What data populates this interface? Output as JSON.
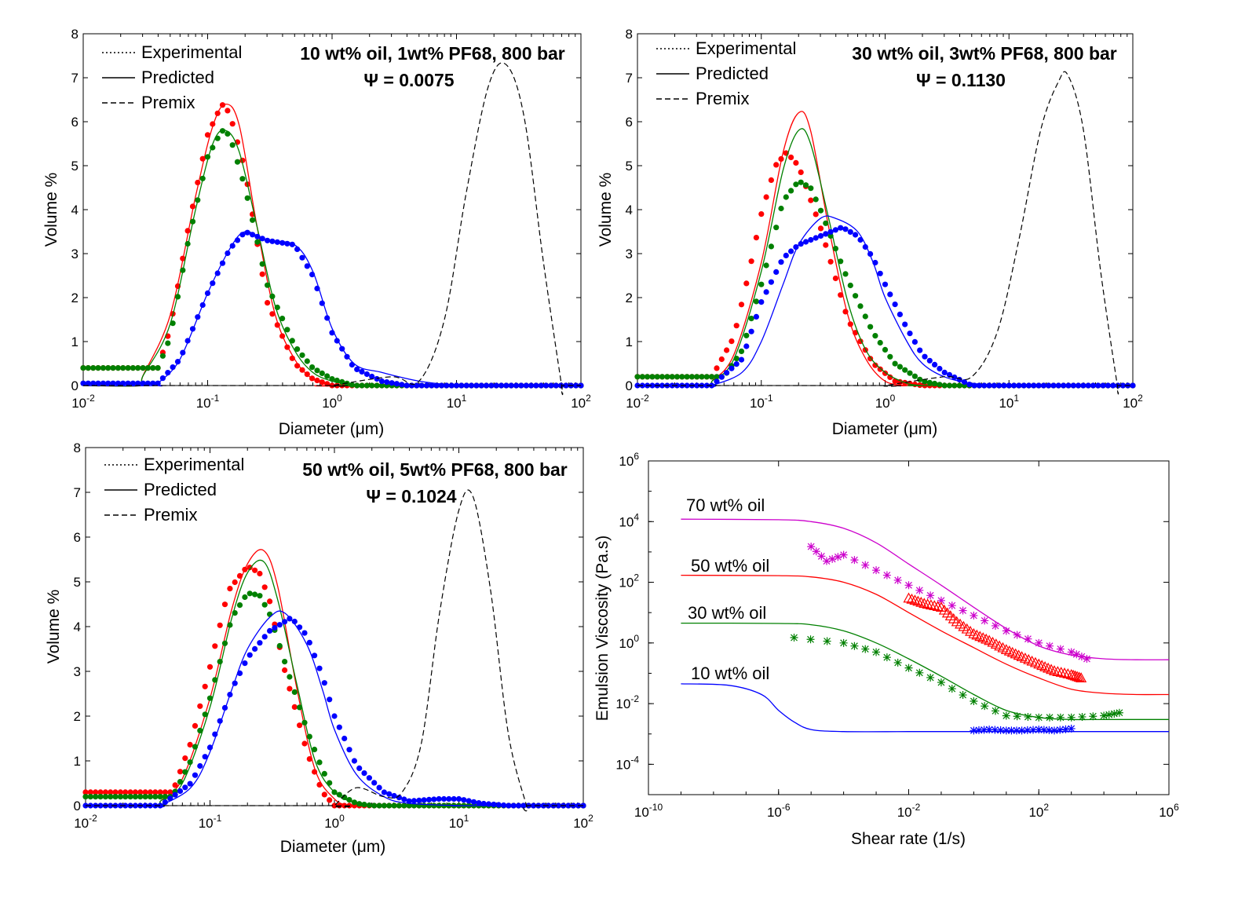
{
  "chart_data": [
    {
      "type": "line",
      "title": "10 wt% oil, 1wt% PF68, 800 bar",
      "subtitle": "Ψ = 0.0075",
      "xlabel": "Diameter (μm)",
      "ylabel": "Volume %",
      "x_scale": "log",
      "xlim": [
        0.01,
        100
      ],
      "ylim": [
        0,
        8
      ],
      "x_ticks": [
        0.01,
        0.1,
        1,
        10,
        100
      ],
      "y_ticks": [
        0,
        1,
        2,
        3,
        4,
        5,
        6,
        7,
        8
      ],
      "legend": {
        "position": "top-left",
        "entries": [
          "Experimental",
          "Predicted",
          "Premix"
        ]
      },
      "series": [
        {
          "style": "dotted",
          "color": "#ff0000",
          "x": [
            0.04,
            0.05,
            0.07,
            0.1,
            0.13,
            0.15,
            0.2,
            0.3,
            0.5,
            0.7,
            1.0
          ],
          "y": [
            0.4,
            1.3,
            3.6,
            5.7,
            6.4,
            6.2,
            4.9,
            1.9,
            0.5,
            0.15,
            0.0
          ]
        },
        {
          "style": "solid",
          "color": "#ff0000",
          "x": [
            0.03,
            0.05,
            0.08,
            0.11,
            0.14,
            0.18,
            0.25,
            0.35,
            0.5,
            0.7,
            1.0
          ],
          "y": [
            0.2,
            1.6,
            4.3,
            5.9,
            6.4,
            5.9,
            3.6,
            1.6,
            0.6,
            0.15,
            0.0
          ]
        },
        {
          "style": "dotted",
          "color": "#008000",
          "x": [
            0.04,
            0.05,
            0.07,
            0.1,
            0.13,
            0.15,
            0.2,
            0.3,
            0.5,
            0.7,
            1.0,
            1.5
          ],
          "y": [
            0.4,
            1.1,
            3.3,
            5.2,
            5.8,
            5.7,
            4.5,
            2.3,
            0.9,
            0.4,
            0.15,
            0.0
          ]
        },
        {
          "style": "solid",
          "color": "#008000",
          "x": [
            0.03,
            0.05,
            0.08,
            0.11,
            0.14,
            0.18,
            0.25,
            0.35,
            0.5,
            0.7,
            1.0,
            1.5
          ],
          "y": [
            0.2,
            1.4,
            4.0,
            5.5,
            5.8,
            5.3,
            3.6,
            1.8,
            0.8,
            0.3,
            0.1,
            0.0
          ]
        },
        {
          "style": "dotted",
          "color": "#0000ff",
          "x": [
            0.04,
            0.06,
            0.1,
            0.15,
            0.2,
            0.3,
            0.5,
            0.7,
            1.0,
            1.5,
            2.5,
            4.0
          ],
          "y": [
            0.05,
            0.6,
            2.1,
            3.1,
            3.5,
            3.3,
            3.2,
            2.5,
            1.2,
            0.4,
            0.1,
            0.0
          ]
        },
        {
          "style": "solid",
          "color": "#0000ff",
          "x": [
            0.04,
            0.06,
            0.1,
            0.15,
            0.2,
            0.3,
            0.5,
            0.7,
            1.0,
            1.5,
            2.5,
            5.0,
            10.0
          ],
          "y": [
            0.05,
            0.6,
            2.1,
            3.1,
            3.5,
            3.3,
            3.2,
            2.6,
            1.3,
            0.5,
            0.3,
            0.1,
            0.0
          ]
        },
        {
          "style": "dashed",
          "color": "#000000",
          "x": [
            1.0,
            3.0,
            5.0,
            8.0,
            12.0,
            18.0,
            25.0,
            35.0,
            50.0,
            70.0
          ],
          "y": [
            0.0,
            0.2,
            0.1,
            1.5,
            4.4,
            6.8,
            7.3,
            6.1,
            2.8,
            0.0
          ]
        }
      ]
    },
    {
      "type": "line",
      "title": "30 wt% oil, 3wt% PF68, 800 bar",
      "subtitle": "Ψ = 0.1130",
      "xlabel": "Diameter (μm)",
      "ylabel": "Volume %",
      "x_scale": "log",
      "xlim": [
        0.01,
        100
      ],
      "ylim": [
        0,
        8
      ],
      "x_ticks": [
        0.01,
        0.1,
        1,
        10,
        100
      ],
      "y_ticks": [
        0,
        1,
        2,
        3,
        4,
        5,
        6,
        7,
        8
      ],
      "legend": {
        "position": "top-left",
        "entries": [
          "Experimental",
          "Predicted",
          "Premix"
        ]
      },
      "series": [
        {
          "style": "dotted",
          "color": "#ff0000",
          "x": [
            0.04,
            0.06,
            0.08,
            0.1,
            0.13,
            0.16,
            0.2,
            0.3,
            0.5,
            0.8,
            1.2,
            2.0
          ],
          "y": [
            0.2,
            1.1,
            2.6,
            3.9,
            5.0,
            5.3,
            5.0,
            3.6,
            1.5,
            0.5,
            0.1,
            0.0
          ]
        },
        {
          "style": "solid",
          "color": "#ff0000",
          "x": [
            0.04,
            0.06,
            0.1,
            0.15,
            0.2,
            0.25,
            0.35,
            0.5,
            0.7,
            1.0,
            1.5
          ],
          "y": [
            0.1,
            0.7,
            2.8,
            5.3,
            6.2,
            5.8,
            3.6,
            1.6,
            0.6,
            0.1,
            0.0
          ]
        },
        {
          "style": "dotted",
          "color": "#008000",
          "x": [
            0.05,
            0.07,
            0.1,
            0.15,
            0.2,
            0.25,
            0.3,
            0.5,
            0.8,
            1.2,
            2.0,
            3.0
          ],
          "y": [
            0.2,
            0.8,
            2.3,
            4.2,
            4.65,
            4.5,
            4.0,
            2.4,
            1.2,
            0.5,
            0.1,
            0.0
          ]
        },
        {
          "style": "solid",
          "color": "#008000",
          "x": [
            0.04,
            0.06,
            0.1,
            0.15,
            0.2,
            0.25,
            0.35,
            0.5,
            0.7,
            1.0,
            1.5,
            2.0
          ],
          "y": [
            0.1,
            0.6,
            2.6,
            4.9,
            5.8,
            5.5,
            3.8,
            1.9,
            0.8,
            0.3,
            0.05,
            0.0
          ]
        },
        {
          "style": "dotted",
          "color": "#0000ff",
          "x": [
            0.04,
            0.07,
            0.1,
            0.15,
            0.2,
            0.3,
            0.45,
            0.6,
            0.8,
            1.0,
            1.5,
            2.0,
            3.0,
            5.0
          ],
          "y": [
            0.0,
            0.6,
            1.9,
            2.9,
            3.2,
            3.4,
            3.6,
            3.4,
            2.9,
            2.3,
            1.3,
            0.7,
            0.3,
            0.0
          ]
        },
        {
          "style": "solid",
          "color": "#0000ff",
          "x": [
            0.04,
            0.07,
            0.1,
            0.15,
            0.2,
            0.3,
            0.4,
            0.6,
            0.8,
            1.0,
            1.5,
            2.0,
            3.0,
            5.0,
            10.0
          ],
          "y": [
            0.0,
            0.3,
            1.0,
            2.3,
            3.2,
            3.8,
            3.8,
            3.5,
            2.8,
            2.0,
            1.0,
            0.5,
            0.2,
            0.05,
            0.0
          ]
        },
        {
          "style": "dashed",
          "color": "#000000",
          "x": [
            1.0,
            3.0,
            5.0,
            8.0,
            12.0,
            18.0,
            25.0,
            30.0,
            40.0,
            55.0,
            75.0
          ],
          "y": [
            0.0,
            0.2,
            0.2,
            1.2,
            3.3,
            5.8,
            6.9,
            7.05,
            5.8,
            2.6,
            0.0
          ]
        }
      ]
    },
    {
      "type": "line",
      "title": "50 wt% oil, 5wt% PF68, 800 bar",
      "subtitle": "Ψ = 0.1024",
      "xlabel": "Diameter (μm)",
      "ylabel": "Volume %",
      "x_scale": "log",
      "xlim": [
        0.01,
        100
      ],
      "ylim": [
        0,
        8
      ],
      "x_ticks": [
        0.01,
        0.1,
        1,
        10,
        100
      ],
      "y_ticks": [
        0,
        1,
        2,
        3,
        4,
        5,
        6,
        7,
        8
      ],
      "legend": {
        "position": "top-left",
        "entries": [
          "Experimental",
          "Predicted",
          "Premix"
        ]
      },
      "series": [
        {
          "style": "dotted",
          "color": "#ff0000",
          "x": [
            0.05,
            0.07,
            0.1,
            0.14,
            0.2,
            0.25,
            0.3,
            0.4,
            0.6,
            0.8,
            1.0
          ],
          "y": [
            0.3,
            1.4,
            3.1,
            4.8,
            5.35,
            5.2,
            4.6,
            3.0,
            1.2,
            0.3,
            0.0
          ]
        },
        {
          "style": "solid",
          "color": "#ff0000",
          "x": [
            0.04,
            0.06,
            0.1,
            0.15,
            0.2,
            0.27,
            0.35,
            0.5,
            0.7,
            1.0,
            1.3
          ],
          "y": [
            0.1,
            0.6,
            2.4,
            4.4,
            5.4,
            5.7,
            4.9,
            2.6,
            0.8,
            0.15,
            0.0
          ]
        },
        {
          "style": "dotted",
          "color": "#008000",
          "x": [
            0.05,
            0.07,
            0.1,
            0.15,
            0.2,
            0.25,
            0.3,
            0.4,
            0.6,
            0.8,
            1.0,
            1.5,
            2.0
          ],
          "y": [
            0.2,
            1.0,
            2.4,
            4.2,
            4.75,
            4.7,
            4.3,
            3.2,
            1.7,
            0.8,
            0.3,
            0.05,
            0.0
          ]
        },
        {
          "style": "solid",
          "color": "#008000",
          "x": [
            0.04,
            0.06,
            0.1,
            0.15,
            0.2,
            0.27,
            0.35,
            0.5,
            0.7,
            1.0,
            1.5,
            2.0
          ],
          "y": [
            0.1,
            0.5,
            2.2,
            4.2,
            5.2,
            5.45,
            4.6,
            2.7,
            1.0,
            0.3,
            0.05,
            0.0
          ]
        },
        {
          "style": "dotted",
          "color": "#0000ff",
          "x": [
            0.04,
            0.07,
            0.1,
            0.15,
            0.2,
            0.3,
            0.45,
            0.6,
            0.8,
            1.0,
            1.5,
            2.5,
            4.0,
            7.0,
            10.0,
            15.0,
            25.0
          ],
          "y": [
            0.0,
            0.5,
            1.3,
            2.6,
            3.3,
            3.9,
            4.2,
            3.8,
            2.9,
            2.0,
            0.9,
            0.3,
            0.1,
            0.15,
            0.15,
            0.05,
            0.0
          ]
        },
        {
          "style": "solid",
          "color": "#0000ff",
          "x": [
            0.04,
            0.07,
            0.1,
            0.15,
            0.2,
            0.3,
            0.4,
            0.6,
            0.8,
            1.0,
            1.5,
            2.5,
            4.0,
            10.0
          ],
          "y": [
            0.0,
            0.4,
            1.2,
            2.6,
            3.5,
            4.2,
            4.3,
            3.6,
            2.6,
            1.7,
            0.7,
            0.2,
            0.05,
            0.0
          ]
        },
        {
          "style": "dashed",
          "color": "#000000",
          "x": [
            1.0,
            1.5,
            2.5,
            3.5,
            5.0,
            7.0,
            10.0,
            13.0,
            18.0,
            25.0,
            35.0
          ],
          "y": [
            0.0,
            0.4,
            0.2,
            0.3,
            1.4,
            4.3,
            6.6,
            6.9,
            4.8,
            1.6,
            0.0
          ]
        }
      ]
    },
    {
      "type": "line",
      "xlabel": "Shear rate (1/s)",
      "ylabel": "Emulsion Viscosity (Pa.s)",
      "x_scale": "log",
      "y_scale": "log",
      "xlim": [
        1e-10,
        1000000.0
      ],
      "ylim": [
        1e-05,
        1000000.0
      ],
      "x_ticks": [
        1e-10,
        1e-06,
        0.01,
        100,
        1000000.0
      ],
      "y_ticks": [
        0.0001,
        0.01,
        1,
        100,
        10000,
        1000000.0
      ],
      "annotations": [
        "70 wt% oil",
        "50 wt% oil",
        "30 wt% oil",
        "10 wt% oil"
      ],
      "series": [
        {
          "style": "solid",
          "color": "#cc00cc",
          "x": [
            1e-09,
            1e-06,
            1e-05,
            0.0001,
            0.001,
            0.01,
            0.1,
            1,
            10,
            100,
            1000,
            10000,
            100000,
            1000000.0
          ],
          "y": [
            12000,
            11500,
            10000,
            6000,
            2000,
            400,
            80,
            15,
            3,
            0.8,
            0.4,
            0.3,
            0.28,
            0.28
          ]
        },
        {
          "style": "markers",
          "marker": "*",
          "color": "#cc00cc",
          "x": [
            1e-05,
            3e-05,
            0.0001,
            0.001,
            0.01,
            0.1,
            1,
            10,
            100,
            1000,
            3000
          ],
          "y": [
            1500,
            500,
            800,
            250,
            80,
            25,
            8,
            2.5,
            1,
            0.5,
            0.3
          ]
        },
        {
          "style": "solid",
          "color": "#ff0000",
          "x": [
            1e-09,
            1e-06,
            1e-05,
            0.0001,
            0.001,
            0.01,
            0.1,
            1,
            10,
            100,
            1000,
            10000,
            100000,
            1000000.0
          ],
          "y": [
            170,
            165,
            150,
            100,
            40,
            10,
            2.5,
            0.7,
            0.2,
            0.07,
            0.03,
            0.022,
            0.02,
            0.02
          ]
        },
        {
          "style": "markers",
          "marker": "triangle",
          "color": "#ff0000",
          "x": [
            0.01,
            0.03,
            0.1,
            0.3,
            1,
            3,
            10,
            30,
            100,
            300,
            1000,
            2000
          ],
          "y": [
            30,
            20,
            15,
            5,
            2,
            1.2,
            0.6,
            0.35,
            0.2,
            0.12,
            0.09,
            0.07
          ]
        },
        {
          "style": "solid",
          "color": "#008000",
          "x": [
            1e-09,
            1e-06,
            1e-05,
            0.0001,
            0.001,
            0.01,
            0.1,
            1,
            10,
            100,
            1000,
            10000,
            100000,
            1000000.0
          ],
          "y": [
            4.5,
            4.4,
            4.0,
            2.5,
            1.0,
            0.3,
            0.08,
            0.02,
            0.006,
            0.0035,
            0.003,
            0.003,
            0.003,
            0.003
          ]
        },
        {
          "style": "markers",
          "marker": "*",
          "color": "#008000",
          "x": [
            3e-06,
            0.0001,
            0.001,
            0.01,
            0.1,
            1,
            10,
            100,
            1000,
            10000,
            30000
          ],
          "y": [
            1.5,
            1.0,
            0.5,
            0.15,
            0.05,
            0.012,
            0.004,
            0.0035,
            0.0035,
            0.004,
            0.005
          ]
        },
        {
          "style": "solid",
          "color": "#0000ff",
          "x": [
            1e-09,
            3e-08,
            3e-07,
            1e-06,
            3e-06,
            1e-05,
            0.0001,
            0.01,
            1,
            100,
            1000000.0
          ],
          "y": [
            0.045,
            0.04,
            0.02,
            0.006,
            0.0025,
            0.0014,
            0.0012,
            0.0012,
            0.0012,
            0.0012,
            0.0012
          ]
        },
        {
          "style": "markers",
          "marker": "*",
          "color": "#0000ff",
          "x": [
            1,
            3,
            10,
            30,
            100,
            300,
            1000
          ],
          "y": [
            0.0013,
            0.0014,
            0.0013,
            0.0013,
            0.0014,
            0.0013,
            0.0015
          ]
        }
      ]
    }
  ]
}
